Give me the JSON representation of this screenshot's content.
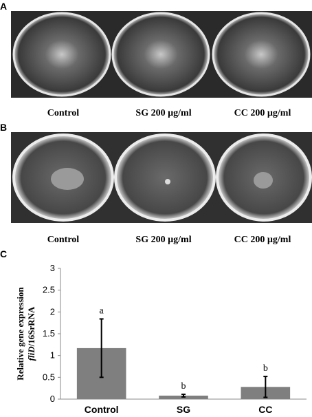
{
  "panels": {
    "A": {
      "label": "A",
      "captions": [
        "Control",
        "SG 200 µg/ml",
        "CC 200 µg/ml"
      ]
    },
    "B": {
      "label": "B",
      "captions": [
        "Control",
        "SG 200 µg/ml",
        "CC 200 µg/ml"
      ]
    },
    "C": {
      "label": "C"
    }
  },
  "chart_data": {
    "type": "bar",
    "ylabel": "Relative gene expression",
    "ylabel_gene": "fliD",
    "ylabel_ref": "/16SrRNA",
    "categories": [
      "Control",
      "SG",
      "CC"
    ],
    "values": [
      1.17,
      0.08,
      0.28
    ],
    "errors": [
      0.67,
      0.03,
      0.24
    ],
    "annotations": [
      "a",
      "b",
      "b"
    ],
    "color": "#7f7f7f",
    "ylim": [
      0,
      3
    ],
    "yticks": [
      0,
      0.5,
      1,
      1.5,
      2,
      2.5,
      3
    ]
  }
}
